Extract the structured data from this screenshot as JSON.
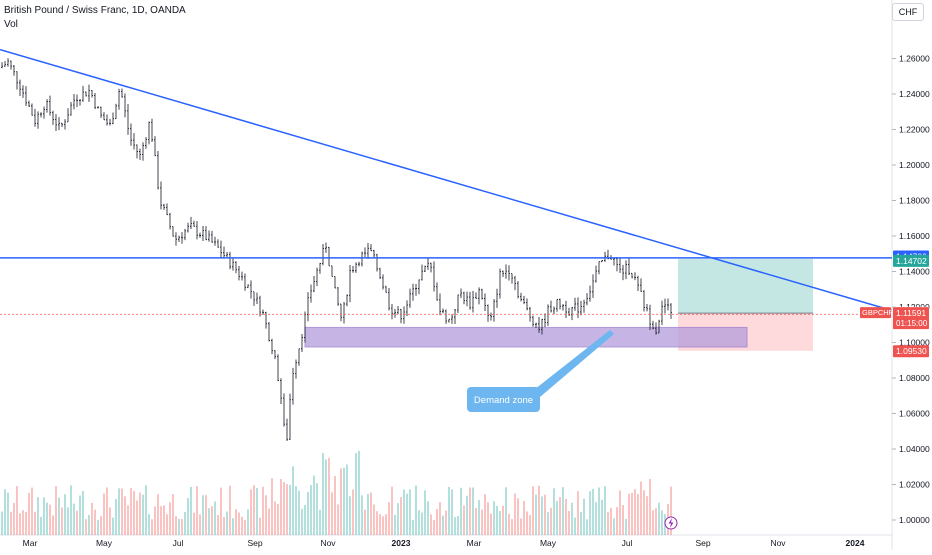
{
  "header": {
    "title": "British Pound / Swiss Franc, 1D, OANDA",
    "volume_label": "Vol",
    "currency": "CHF"
  },
  "chart_data": {
    "type": "candlestick",
    "symbol": "GBPCHF",
    "y_ticks": [
      "1.26000",
      "1.24000",
      "1.22000",
      "1.20000",
      "1.18000",
      "1.16000",
      "1.14000",
      "1.12000",
      "1.10000",
      "1.08000",
      "1.06000",
      "1.04000",
      "1.02000",
      "1.00000"
    ],
    "ylim": [
      1.0,
      1.27
    ],
    "x_ticks": [
      "Mar",
      "May",
      "Jul",
      "Sep",
      "Nov",
      "2023",
      "Mar",
      "May",
      "Jul",
      "Sep",
      "Nov",
      "2024"
    ],
    "price_path": [
      [
        0,
        1.255
      ],
      [
        8,
        1.258
      ],
      [
        20,
        1.245
      ],
      [
        35,
        1.225
      ],
      [
        45,
        1.235
      ],
      [
        60,
        1.22
      ],
      [
        75,
        1.238
      ],
      [
        90,
        1.242
      ],
      [
        100,
        1.228
      ],
      [
        110,
        1.222
      ],
      [
        120,
        1.244
      ],
      [
        130,
        1.215
      ],
      [
        140,
        1.205
      ],
      [
        150,
        1.225
      ],
      [
        160,
        1.18
      ],
      [
        175,
        1.158
      ],
      [
        190,
        1.165
      ],
      [
        205,
        1.16
      ],
      [
        220,
        1.152
      ],
      [
        235,
        1.142
      ],
      [
        250,
        1.13
      ],
      [
        262,
        1.118
      ],
      [
        272,
        1.098
      ],
      [
        280,
        1.075
      ],
      [
        286,
        1.04
      ],
      [
        292,
        1.082
      ],
      [
        300,
        1.1
      ],
      [
        310,
        1.128
      ],
      [
        318,
        1.142
      ],
      [
        326,
        1.155
      ],
      [
        334,
        1.13
      ],
      [
        342,
        1.112
      ],
      [
        350,
        1.14
      ],
      [
        360,
        1.148
      ],
      [
        370,
        1.152
      ],
      [
        380,
        1.138
      ],
      [
        390,
        1.12
      ],
      [
        400,
        1.115
      ],
      [
        410,
        1.125
      ],
      [
        420,
        1.138
      ],
      [
        430,
        1.144
      ],
      [
        440,
        1.118
      ],
      [
        450,
        1.112
      ],
      [
        460,
        1.128
      ],
      [
        470,
        1.122
      ],
      [
        480,
        1.13
      ],
      [
        490,
        1.11
      ],
      [
        500,
        1.138
      ],
      [
        510,
        1.142
      ],
      [
        520,
        1.125
      ],
      [
        530,
        1.115
      ],
      [
        540,
        1.108
      ],
      [
        550,
        1.12
      ],
      [
        560,
        1.122
      ],
      [
        570,
        1.118
      ],
      [
        580,
        1.12
      ],
      [
        590,
        1.13
      ],
      [
        600,
        1.144
      ],
      [
        610,
        1.15
      ],
      [
        620,
        1.14
      ],
      [
        630,
        1.142
      ],
      [
        640,
        1.128
      ],
      [
        648,
        1.115
      ],
      [
        656,
        1.108
      ],
      [
        664,
        1.122
      ],
      [
        672,
        1.116
      ]
    ],
    "horizontal_levels": [
      {
        "price": 1.14766,
        "label": "1.14766",
        "color": "#2962ff"
      },
      {
        "price": 1.14702,
        "label": "1.14702",
        "color": "#26a69a"
      },
      {
        "price": 1.11653,
        "label": "1.11653",
        "color": "#787b86"
      },
      {
        "price": 1.0953,
        "label": "1.09530",
        "color": "#ef5350"
      }
    ],
    "last_price": {
      "symbol": "GBPCHF",
      "price": "1.11591",
      "countdown": "01:15:00",
      "color": "#ef5350"
    },
    "trendline": {
      "from": [
        0,
        1.265
      ],
      "to": [
        892,
        1.118
      ],
      "color": "#2962ff"
    },
    "demand_zone": {
      "label": "Demand zone",
      "price_top": 1.1085,
      "price_bottom": 1.0975,
      "fill": "#b39ddb"
    },
    "position": {
      "entry": 1.11653,
      "target": 1.14702,
      "stop": 1.0953,
      "profit_fill": "#b2dfdb",
      "loss_fill": "#ffcdd2"
    }
  }
}
